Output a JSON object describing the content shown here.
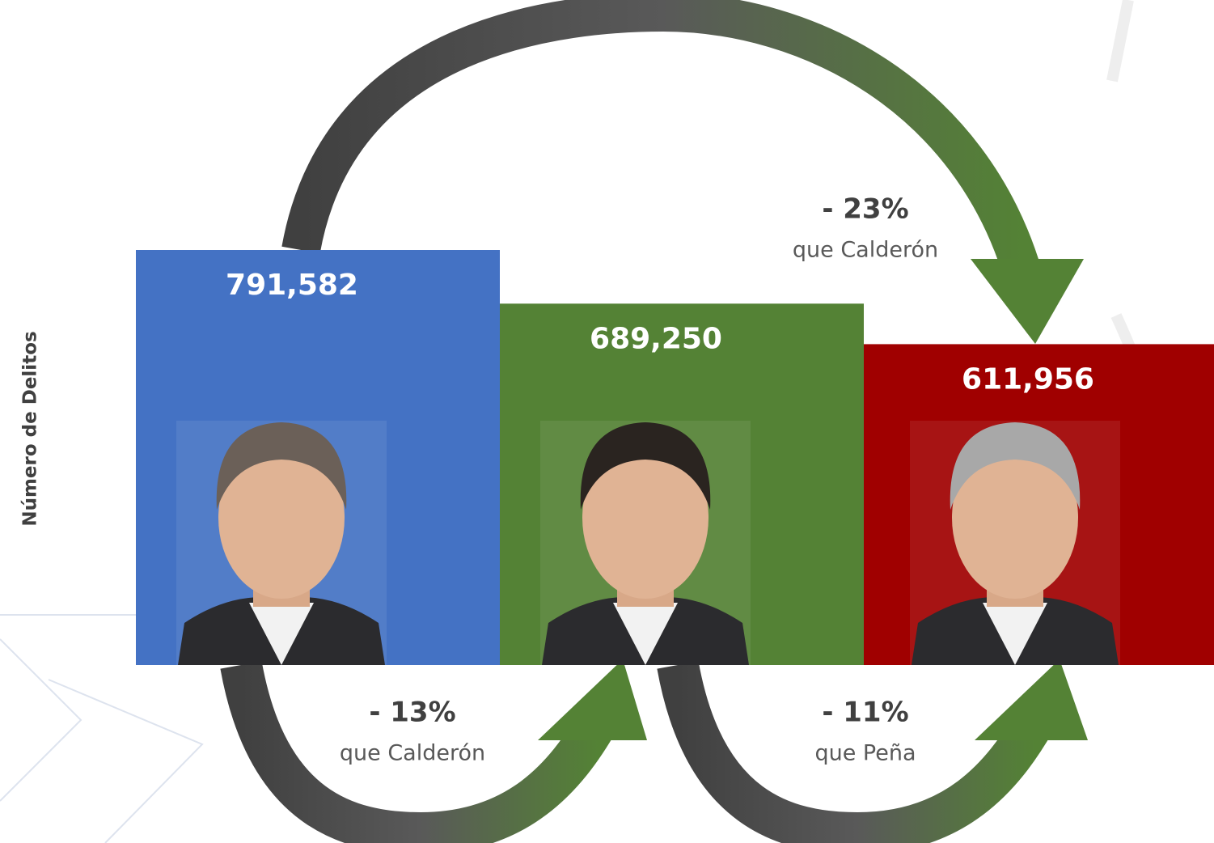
{
  "chart_data": {
    "type": "bar",
    "y_label": "Número de Delitos",
    "categories": [
      null,
      null,
      null
    ],
    "values": [
      791582,
      689250,
      611956
    ],
    "value_labels": [
      "791,582",
      "689,250",
      "611,956"
    ],
    "colors": [
      "#4472c4",
      "#548235",
      "#a00000"
    ],
    "annotations": [
      {
        "change": "- 23%",
        "comparison": "que Calderón"
      },
      {
        "change": "- 13%",
        "comparison": "que Calderón"
      },
      {
        "change": "- 11%",
        "comparison": "que Peña"
      }
    ]
  }
}
